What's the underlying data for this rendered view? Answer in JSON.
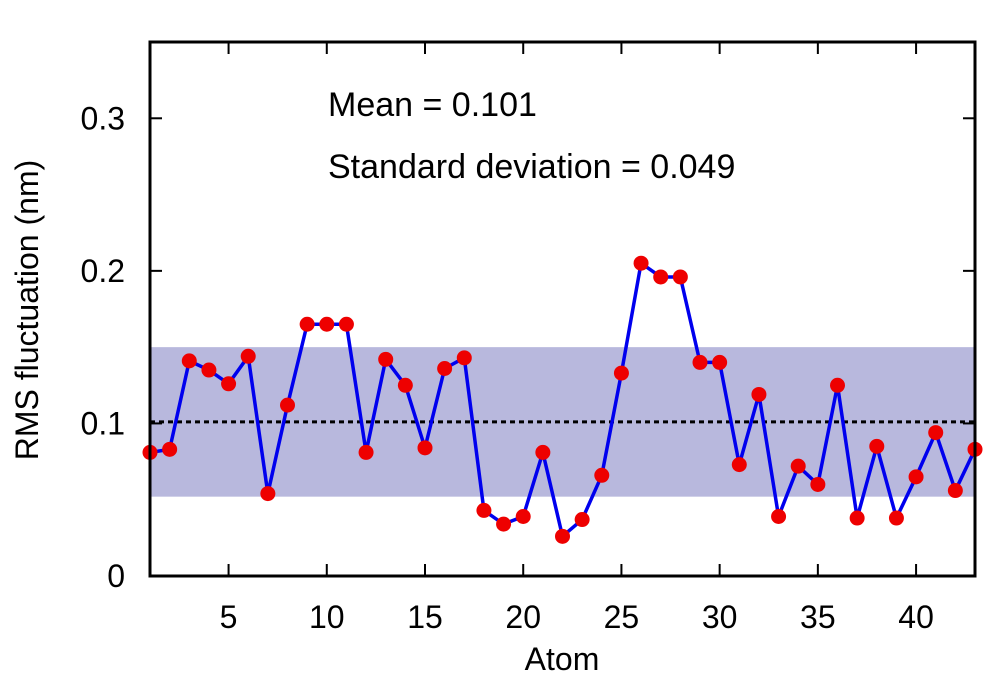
{
  "chart_data": {
    "type": "line",
    "title": "",
    "xlabel": "Atom",
    "ylabel": "RMS fluctuation (nm)",
    "xlim": [
      1,
      43
    ],
    "ylim": [
      0,
      0.35
    ],
    "xticks": [
      5,
      10,
      15,
      20,
      25,
      30,
      35,
      40
    ],
    "yticks": [
      0,
      0.1,
      0.2,
      0.3
    ],
    "xtick_labels": [
      "5",
      "10",
      "15",
      "20",
      "25",
      "30",
      "35",
      "40"
    ],
    "ytick_labels": [
      "0",
      "0.1",
      "0.2",
      "0.3"
    ],
    "grid": false,
    "x": [
      1,
      2,
      3,
      4,
      5,
      6,
      7,
      8,
      9,
      10,
      11,
      12,
      13,
      14,
      15,
      16,
      17,
      18,
      19,
      20,
      21,
      22,
      23,
      24,
      25,
      26,
      27,
      28,
      29,
      30,
      31,
      32,
      33,
      34,
      35,
      36,
      37,
      38,
      39,
      40,
      41,
      42,
      43
    ],
    "series": [
      {
        "values": [
          0.081,
          0.083,
          0.141,
          0.135,
          0.126,
          0.144,
          0.054,
          0.112,
          0.165,
          0.165,
          0.165,
          0.081,
          0.142,
          0.125,
          0.084,
          0.136,
          0.143,
          0.043,
          0.034,
          0.039,
          0.081,
          0.026,
          0.037,
          0.066,
          0.133,
          0.205,
          0.196,
          0.196,
          0.14,
          0.14,
          0.073,
          0.119,
          0.039,
          0.072,
          0.06,
          0.125,
          0.038,
          0.085,
          0.038,
          0.065,
          0.094,
          0.056,
          0.083
        ],
        "line_color": "#0000ee",
        "marker_color": "#ee0000"
      }
    ],
    "mean": 0.101,
    "std": 0.049,
    "band_color": "#b8b8dd",
    "annotations": {
      "mean_text": "Mean = 0.101",
      "std_text": "Standard deviation = 0.049"
    }
  }
}
